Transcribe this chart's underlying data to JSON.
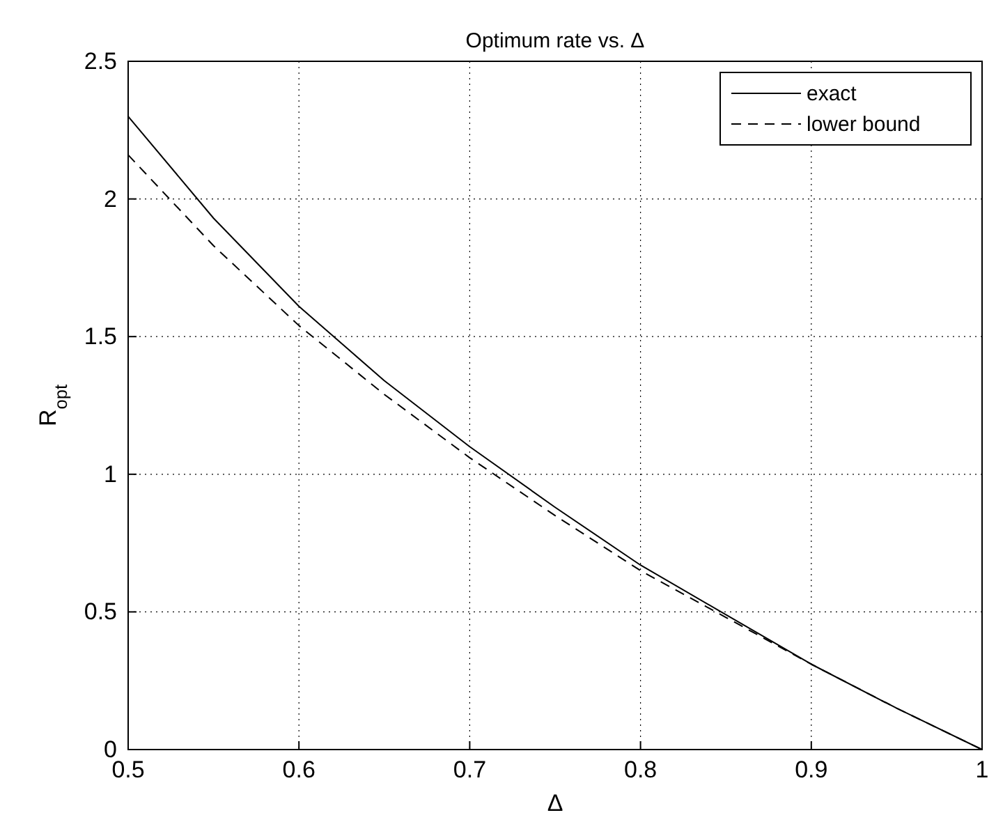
{
  "chart_data": {
    "type": "line",
    "title": "Optimum rate vs. Δ",
    "xlabel": "Δ",
    "ylabel": "R$_{opt}$",
    "x": [
      0.5,
      0.55,
      0.6,
      0.65,
      0.7,
      0.75,
      0.8,
      0.85,
      0.9,
      0.95,
      1.0
    ],
    "series": [
      {
        "name": "exact",
        "color": "#000000",
        "line_style": "solid",
        "values": [
          2.3,
          1.93,
          1.61,
          1.34,
          1.1,
          0.88,
          0.67,
          0.49,
          0.31,
          0.15,
          0
        ]
      },
      {
        "name": "lower bound",
        "color": "#000000",
        "line_style": "dashed",
        "values": [
          2.16,
          1.83,
          1.54,
          1.29,
          1.06,
          0.85,
          0.65,
          0.48,
          0.31,
          0.15,
          0
        ]
      }
    ],
    "xlim": [
      0.5,
      1
    ],
    "xticks": [
      0.5,
      0.6,
      0.7,
      0.8,
      0.9,
      1
    ],
    "ylim": [
      0,
      2.5
    ],
    "yticks": [
      0,
      0.5,
      1,
      1.5,
      2,
      2.5
    ],
    "grid": true,
    "legend": "top right",
    "marker": "none"
  }
}
